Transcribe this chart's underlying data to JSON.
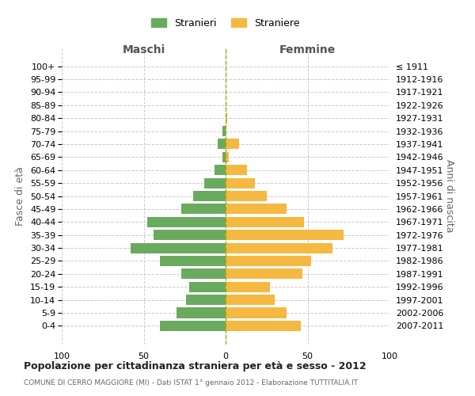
{
  "age_groups": [
    "0-4",
    "5-9",
    "10-14",
    "15-19",
    "20-24",
    "25-29",
    "30-34",
    "35-39",
    "40-44",
    "45-49",
    "50-54",
    "55-59",
    "60-64",
    "65-69",
    "70-74",
    "75-79",
    "80-84",
    "85-89",
    "90-94",
    "95-99",
    "100+"
  ],
  "birth_years": [
    "2007-2011",
    "2002-2006",
    "1997-2001",
    "1992-1996",
    "1987-1991",
    "1982-1986",
    "1977-1981",
    "1972-1976",
    "1967-1971",
    "1962-1966",
    "1957-1961",
    "1952-1956",
    "1947-1951",
    "1942-1946",
    "1937-1941",
    "1932-1936",
    "1927-1931",
    "1922-1926",
    "1917-1921",
    "1912-1916",
    "≤ 1911"
  ],
  "maschi": [
    40,
    30,
    24,
    22,
    27,
    40,
    58,
    44,
    48,
    27,
    20,
    13,
    7,
    2,
    5,
    2,
    0,
    0,
    0,
    0,
    0
  ],
  "femmine": [
    46,
    37,
    30,
    27,
    47,
    52,
    65,
    72,
    48,
    37,
    25,
    18,
    13,
    2,
    8,
    0,
    1,
    0,
    0,
    0,
    0
  ],
  "maschi_color": "#6aaa5e",
  "femmine_color": "#f5b942",
  "background_color": "#ffffff",
  "grid_color": "#cccccc",
  "title": "Popolazione per cittadinanza straniera per età e sesso - 2012",
  "subtitle": "COMUNE DI CERRO MAGGIORE (MI) - Dati ISTAT 1° gennaio 2012 - Elaborazione TUTTITALIA.IT",
  "ylabel_left": "Fasce di età",
  "ylabel_right": "Anni di nascita",
  "xlabel_left": "Maschi",
  "xlabel_right": "Femmine",
  "legend_stranieri": "Stranieri",
  "legend_straniere": "Straniere",
  "xlim": 100,
  "bar_height": 0.8
}
